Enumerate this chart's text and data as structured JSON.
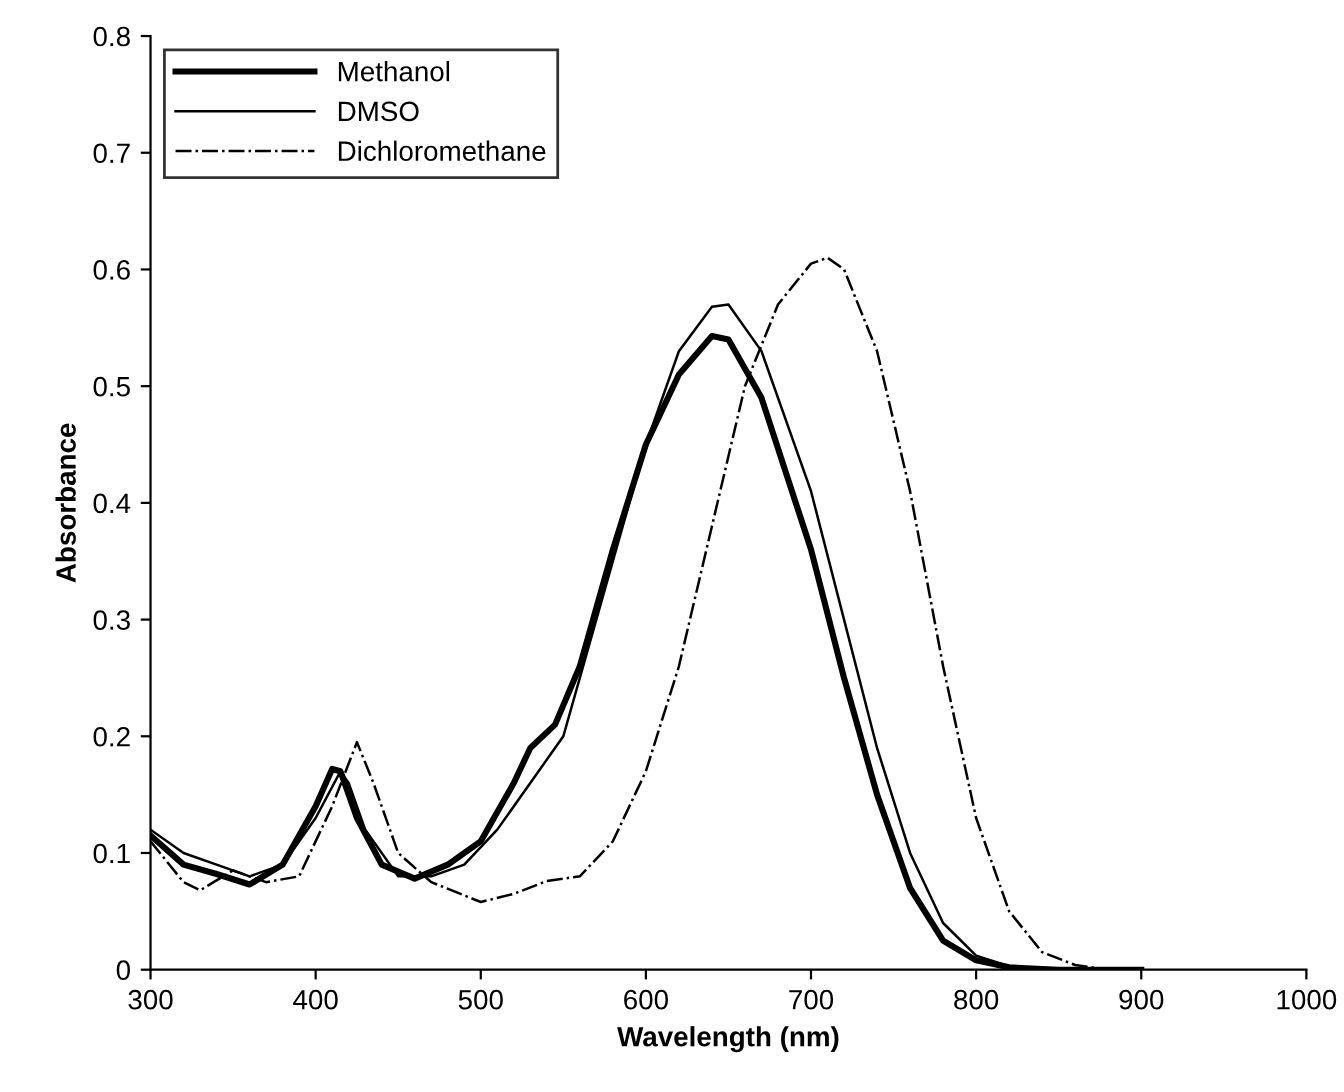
{
  "chart_data": {
    "type": "line",
    "xlabel": "Wavelength (nm)",
    "ylabel": "Absorbance",
    "xlim": [
      300,
      1000
    ],
    "xticks": [
      300,
      400,
      500,
      600,
      700,
      800,
      900,
      1000
    ],
    "ylim": [
      0,
      0.8
    ],
    "yticks": [
      0,
      0.1,
      0.2,
      0.3,
      0.4,
      0.5,
      0.6,
      0.7,
      0.8
    ],
    "grid": false,
    "legend": "top left",
    "marker": "none",
    "series": [
      {
        "name": "Methanol",
        "color": "#000000",
        "line_style": "solid",
        "x": [
          300,
          320,
          340,
          360,
          380,
          400,
          410,
          415,
          425,
          440,
          460,
          480,
          500,
          520,
          530,
          545,
          560,
          580,
          600,
          620,
          640,
          650,
          670,
          700,
          720,
          740,
          760,
          780,
          800,
          820,
          850,
          900
        ],
        "values": [
          0.115,
          0.09,
          0.082,
          0.073,
          0.09,
          0.14,
          0.172,
          0.17,
          0.13,
          0.09,
          0.078,
          0.09,
          0.11,
          0.16,
          0.19,
          0.21,
          0.26,
          0.36,
          0.45,
          0.51,
          0.543,
          0.54,
          0.49,
          0.36,
          0.25,
          0.15,
          0.07,
          0.025,
          0.008,
          0.002,
          0,
          0
        ]
      },
      {
        "name": "DMSO",
        "color": "#000000",
        "line_style": "solid",
        "x": [
          300,
          320,
          340,
          360,
          380,
          400,
          415,
          420,
          430,
          450,
          470,
          490,
          510,
          530,
          550,
          560,
          580,
          600,
          620,
          640,
          650,
          670,
          700,
          720,
          740,
          760,
          780,
          800,
          820,
          850,
          900
        ],
        "values": [
          0.12,
          0.1,
          0.09,
          0.08,
          0.09,
          0.13,
          0.17,
          0.16,
          0.12,
          0.08,
          0.08,
          0.09,
          0.12,
          0.16,
          0.2,
          0.25,
          0.35,
          0.45,
          0.53,
          0.568,
          0.57,
          0.53,
          0.41,
          0.3,
          0.19,
          0.1,
          0.04,
          0.012,
          0.003,
          0,
          0
        ]
      },
      {
        "name": "Dichloromethane",
        "color": "#000000",
        "line_style": "dashdot",
        "x": [
          300,
          320,
          330,
          350,
          370,
          390,
          410,
          425,
          435,
          450,
          470,
          500,
          520,
          540,
          560,
          580,
          600,
          620,
          640,
          660,
          680,
          700,
          710,
          720,
          740,
          760,
          780,
          800,
          820,
          840,
          860,
          880,
          900
        ],
        "values": [
          0.11,
          0.075,
          0.068,
          0.085,
          0.075,
          0.08,
          0.14,
          0.195,
          0.16,
          0.1,
          0.075,
          0.058,
          0.065,
          0.076,
          0.08,
          0.11,
          0.17,
          0.26,
          0.38,
          0.5,
          0.57,
          0.605,
          0.61,
          0.6,
          0.53,
          0.41,
          0.26,
          0.13,
          0.05,
          0.015,
          0.004,
          0,
          0
        ]
      }
    ]
  }
}
